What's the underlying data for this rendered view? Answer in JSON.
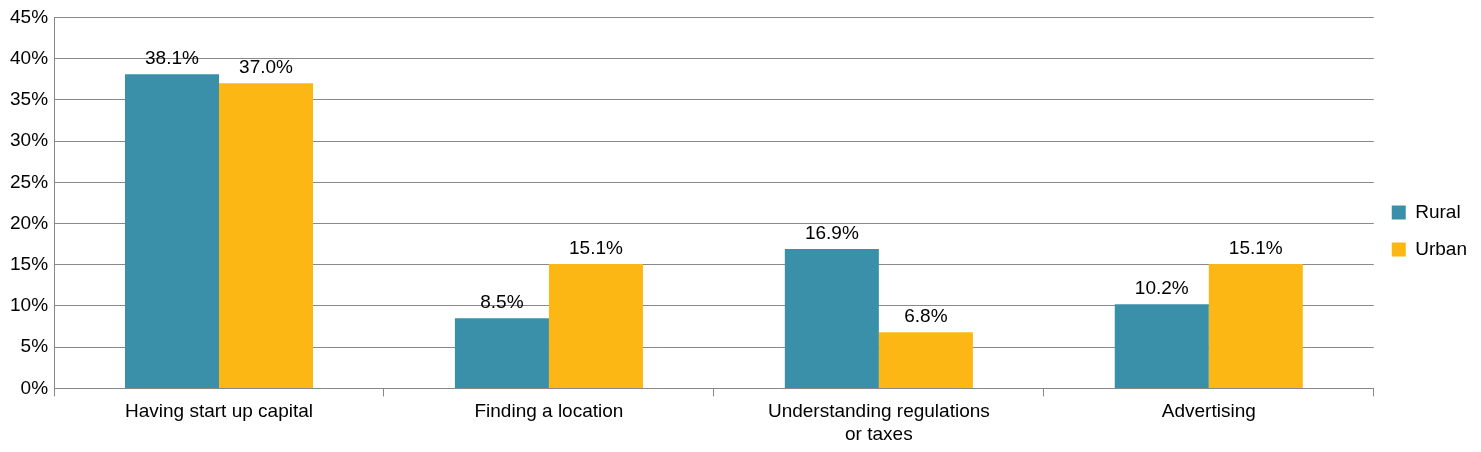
{
  "chart_data": {
    "type": "bar",
    "categories": [
      "Having start up capital",
      "Finding a location",
      "Understanding regulations or taxes",
      "Advertising"
    ],
    "series": [
      {
        "name": "Rural",
        "color": "#3a90a8",
        "values": [
          38.1,
          8.5,
          16.9,
          10.2
        ],
        "value_labels": [
          "38.1%",
          "8.5%",
          "16.9%",
          "10.2%"
        ]
      },
      {
        "name": "Urban",
        "color": "#fdb714",
        "values": [
          37.0,
          15.1,
          6.8,
          15.1
        ],
        "value_labels": [
          "37.0%",
          "15.1%",
          "6.8%",
          "15.1%"
        ]
      }
    ],
    "ylim": [
      0,
      45
    ],
    "yticks": [
      {
        "value": 0,
        "label": "0%"
      },
      {
        "value": 5,
        "label": "5%"
      },
      {
        "value": 10,
        "label": "10%"
      },
      {
        "value": 15,
        "label": "15%"
      },
      {
        "value": 20,
        "label": "20%"
      },
      {
        "value": 25,
        "label": "25%"
      },
      {
        "value": 30,
        "label": "30%"
      },
      {
        "value": 35,
        "label": "35%"
      },
      {
        "value": 40,
        "label": "40%"
      },
      {
        "value": 45,
        "label": "45%"
      }
    ],
    "grid": "y",
    "legend": "right"
  }
}
